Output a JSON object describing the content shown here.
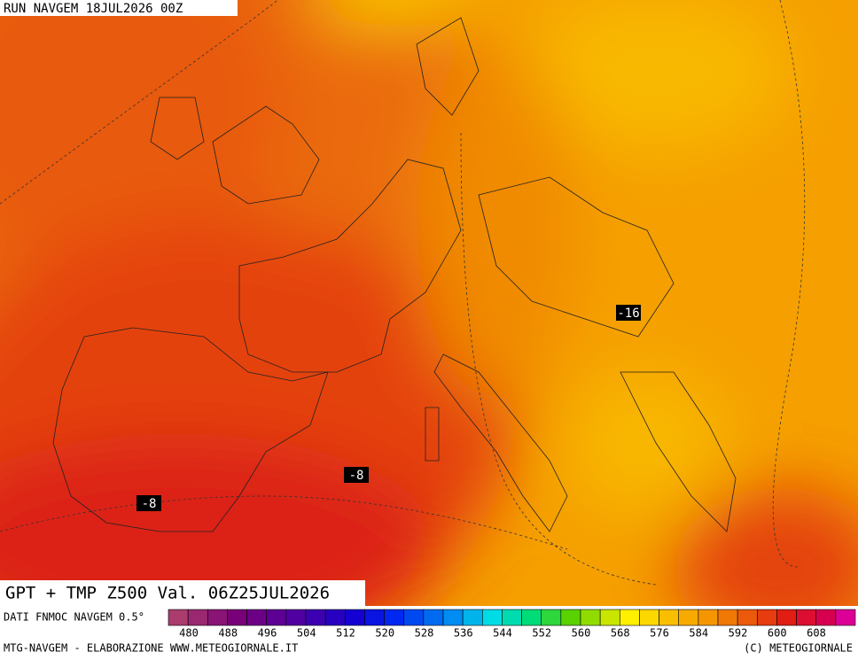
{
  "header": {
    "run": "RUN NAVGEM 18JUL2026 00Z"
  },
  "title": "GPT + TMP Z500 Val. 06Z25JUL2026",
  "map_labels": [
    "-16",
    "-8",
    "-8"
  ],
  "colorbar": {
    "caption": "DATI FNMOC NAVGEM 0.5°",
    "labels": [
      "480",
      "488",
      "496",
      "504",
      "512",
      "520",
      "528",
      "536",
      "544",
      "552",
      "560",
      "568",
      "576",
      "584",
      "592",
      "600",
      "608"
    ]
  },
  "footer": {
    "left": "MTG-NAVGEM - ELABORAZIONE WWW.METEOGIORNALE.IT",
    "right": "(C) METEOGIORNALE"
  }
}
